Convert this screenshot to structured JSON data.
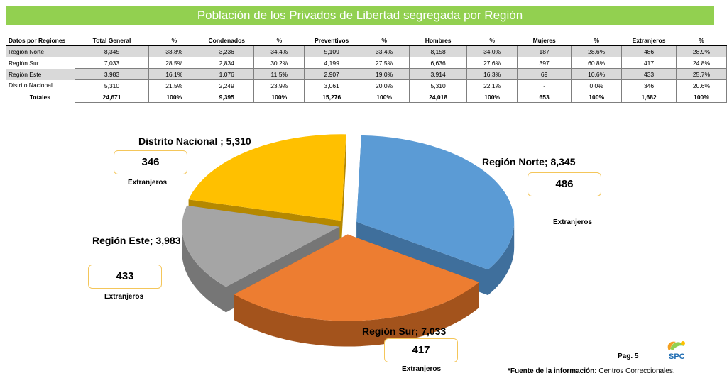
{
  "title": "Población de los Privados de Libertad segregada por Región",
  "table": {
    "headers": [
      "Datos por Regiones",
      "Total General",
      "%",
      "Condenados",
      "%",
      "Preventivos",
      "%",
      "Hombres",
      "%",
      "Mujeres",
      "%",
      "Extranjeros",
      "%"
    ],
    "rows": [
      [
        "Región Norte",
        "8,345",
        "33.8%",
        "3,236",
        "34.4%",
        "5,109",
        "33.4%",
        "8,158",
        "34.0%",
        "187",
        "28.6%",
        "486",
        "28.9%"
      ],
      [
        "Región Sur",
        "7,033",
        "28.5%",
        "2,834",
        "30.2%",
        "4,199",
        "27.5%",
        "6,636",
        "27.6%",
        "397",
        "60.8%",
        "417",
        "24.8%"
      ],
      [
        "Región Este",
        "3,983",
        "16.1%",
        "1,076",
        "11.5%",
        "2,907",
        "19.0%",
        "3,914",
        "16.3%",
        "69",
        "10.6%",
        "433",
        "25.7%"
      ],
      [
        "Distrito Nacional",
        "5,310",
        "21.5%",
        "2,249",
        "23.9%",
        "3,061",
        "20.0%",
        "5,310",
        "22.1%",
        "-",
        "0.0%",
        "346",
        "20.6%"
      ]
    ],
    "totals": [
      "Totales",
      "24,671",
      "100%",
      "9,395",
      "100%",
      "15,276",
      "100%",
      "24,018",
      "100%",
      "653",
      "100%",
      "1,682",
      "100%"
    ]
  },
  "chart_data": {
    "type": "pie",
    "slices": [
      {
        "label": "Región Norte",
        "display": "Región Norte; 8,345",
        "value": 8345,
        "color": "#5b9bd5",
        "side": "#3f6f9c",
        "extranjeros": "486",
        "label_color": "#5b9bd5"
      },
      {
        "label": "Región Sur",
        "display": "Región Sur; 7,033",
        "value": 7033,
        "color": "#ed7d31",
        "side": "#a3531c",
        "extranjeros": "417",
        "label_color": "#ed7d31"
      },
      {
        "label": "Región Este",
        "display": "Región  Este; 3,983",
        "value": 3983,
        "color": "#a5a5a5",
        "side": "#767676",
        "extranjeros": "433",
        "label_color": "#a5a5a5"
      },
      {
        "label": "Distrito Nacional",
        "display": "Distrito Nacional ; 5,310",
        "value": 5310,
        "color": "#ffc000",
        "side": "#b58800",
        "extranjeros": "346",
        "label_color": "#ffc000"
      }
    ],
    "extranjeros_label": "Extranjeros"
  },
  "footer": {
    "page": "Pag. 5",
    "source_bold": "*Fuente de la información:",
    "source_rest": " Centros Correccionales.",
    "logo_text": "SPC"
  }
}
